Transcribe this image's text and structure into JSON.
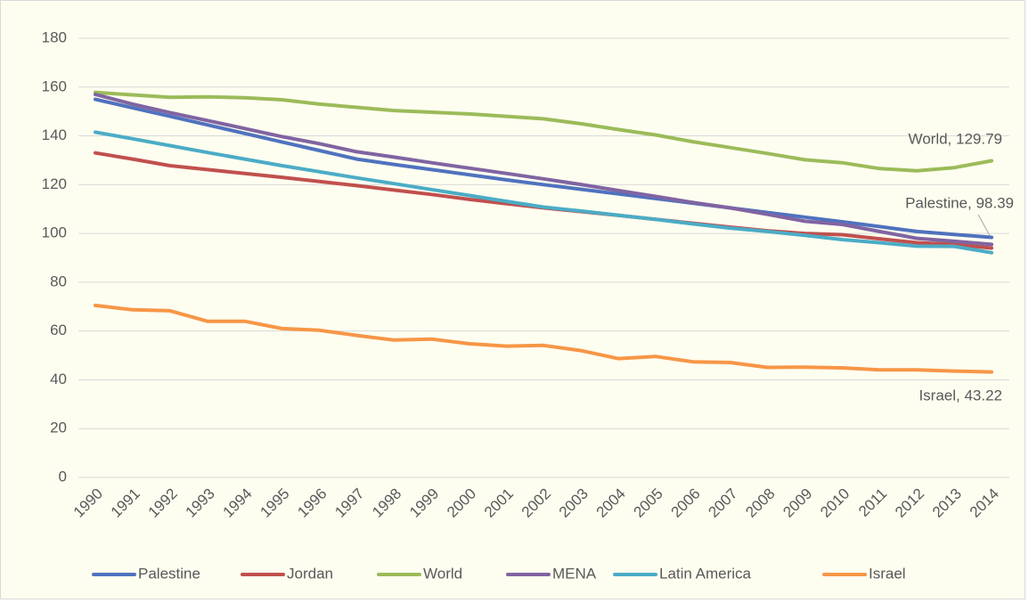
{
  "chart_data": {
    "type": "line",
    "categories": [
      "1990",
      "1991",
      "1992",
      "1993",
      "1994",
      "1995",
      "1996",
      "1997",
      "1998",
      "1999",
      "2000",
      "2001",
      "2002",
      "2003",
      "2004",
      "2005",
      "2006",
      "2007",
      "2008",
      "2009",
      "2010",
      "2011",
      "2012",
      "2013",
      "2014"
    ],
    "series": [
      {
        "name": "Palestine",
        "color": "#4f72be",
        "values": [
          155,
          151.5,
          148,
          144.5,
          141,
          137.5,
          134,
          130.5,
          128.3,
          126.2,
          124.1,
          122,
          120,
          118.1,
          116.2,
          114.3,
          112.4,
          110.5,
          108.6,
          106.7,
          104.8,
          102.8,
          100.8,
          99.6,
          98.39
        ]
      },
      {
        "name": "Jordan",
        "color": "#c0504d",
        "values": [
          133,
          130.5,
          127.8,
          126.2,
          124.6,
          123,
          121.3,
          119.6,
          117.8,
          116,
          114,
          112.2,
          110.5,
          109,
          107.4,
          105.8,
          104.2,
          102.6,
          101.1,
          100,
          99.5,
          97.8,
          96.2,
          95.5,
          94
        ]
      },
      {
        "name": "World",
        "color": "#9bbb59",
        "values": [
          157.8,
          156.8,
          155.8,
          156,
          155.6,
          154.8,
          153,
          151.7,
          150.4,
          149.7,
          149,
          148,
          147,
          145,
          142.6,
          140.4,
          137.6,
          135.2,
          132.8,
          130.2,
          129,
          126.6,
          125.7,
          127,
          129.79
        ]
      },
      {
        "name": "MENA",
        "color": "#8064a2",
        "values": [
          157,
          153,
          149.5,
          146.3,
          143,
          139.7,
          136.8,
          133.5,
          131.3,
          129,
          126.8,
          124.6,
          122.4,
          120.1,
          117.6,
          115.2,
          112.7,
          110.5,
          107.8,
          105,
          103.7,
          100.8,
          98,
          96.8,
          95.5
        ]
      },
      {
        "name": "Latin America",
        "color": "#4bacc6",
        "values": [
          141.5,
          138.8,
          136,
          133.2,
          130.5,
          127.8,
          125.3,
          122.8,
          120.4,
          118,
          115.6,
          113.2,
          110.8,
          109.2,
          107.5,
          105.8,
          103.9,
          102.2,
          100.8,
          99.2,
          97.5,
          96.2,
          94.8,
          94.7,
          92.1
        ]
      },
      {
        "name": "Israel",
        "color": "#f79646",
        "values": [
          70.5,
          68.7,
          68.3,
          64,
          64,
          61,
          60.3,
          58.2,
          56.3,
          56.7,
          54.8,
          53.8,
          54.1,
          52,
          48.7,
          49.6,
          47.4,
          47.1,
          45.1,
          45.2,
          44.9,
          44.1,
          44.1,
          43.6,
          43.22
        ]
      }
    ],
    "annotations": [
      {
        "text": "World, 129.79"
      },
      {
        "text": "Palestine, 98.39"
      },
      {
        "text": "Israel, 43.22"
      }
    ],
    "ylim": [
      0,
      180
    ],
    "yticks": [
      0,
      20,
      40,
      60,
      80,
      100,
      120,
      140,
      160,
      180
    ],
    "grid": true,
    "legend": "bottom"
  }
}
